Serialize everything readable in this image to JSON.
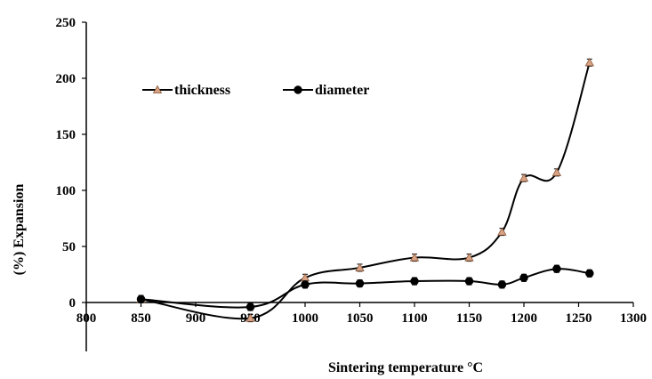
{
  "chart_data": {
    "type": "line",
    "title": "",
    "xlabel": "Sintering temperature °C",
    "ylabel": "(%) Expansion",
    "xlim": [
      800,
      1300
    ],
    "ylim": [
      0,
      250
    ],
    "x_ticks": [
      800,
      850,
      900,
      950,
      1000,
      1050,
      1100,
      1150,
      1200,
      1250,
      1300
    ],
    "y_ticks": [
      0,
      50,
      100,
      150,
      200,
      250
    ],
    "grid": false,
    "legend_position": "top-left",
    "series": [
      {
        "name": "thickness",
        "marker": "triangle",
        "marker_color": "#d9a284",
        "line_color": "#000000",
        "x": [
          850,
          950,
          1000,
          1050,
          1100,
          1150,
          1180,
          1200,
          1230,
          1260
        ],
        "y": [
          3,
          -14,
          22,
          31,
          40,
          40,
          63,
          111,
          116,
          214
        ]
      },
      {
        "name": "diameter",
        "marker": "circle",
        "marker_color": "#000000",
        "line_color": "#000000",
        "x": [
          850,
          950,
          1000,
          1050,
          1100,
          1150,
          1180,
          1200,
          1230,
          1260
        ],
        "y": [
          3,
          -4,
          16,
          17,
          19,
          19,
          16,
          22,
          30,
          26
        ]
      }
    ]
  }
}
